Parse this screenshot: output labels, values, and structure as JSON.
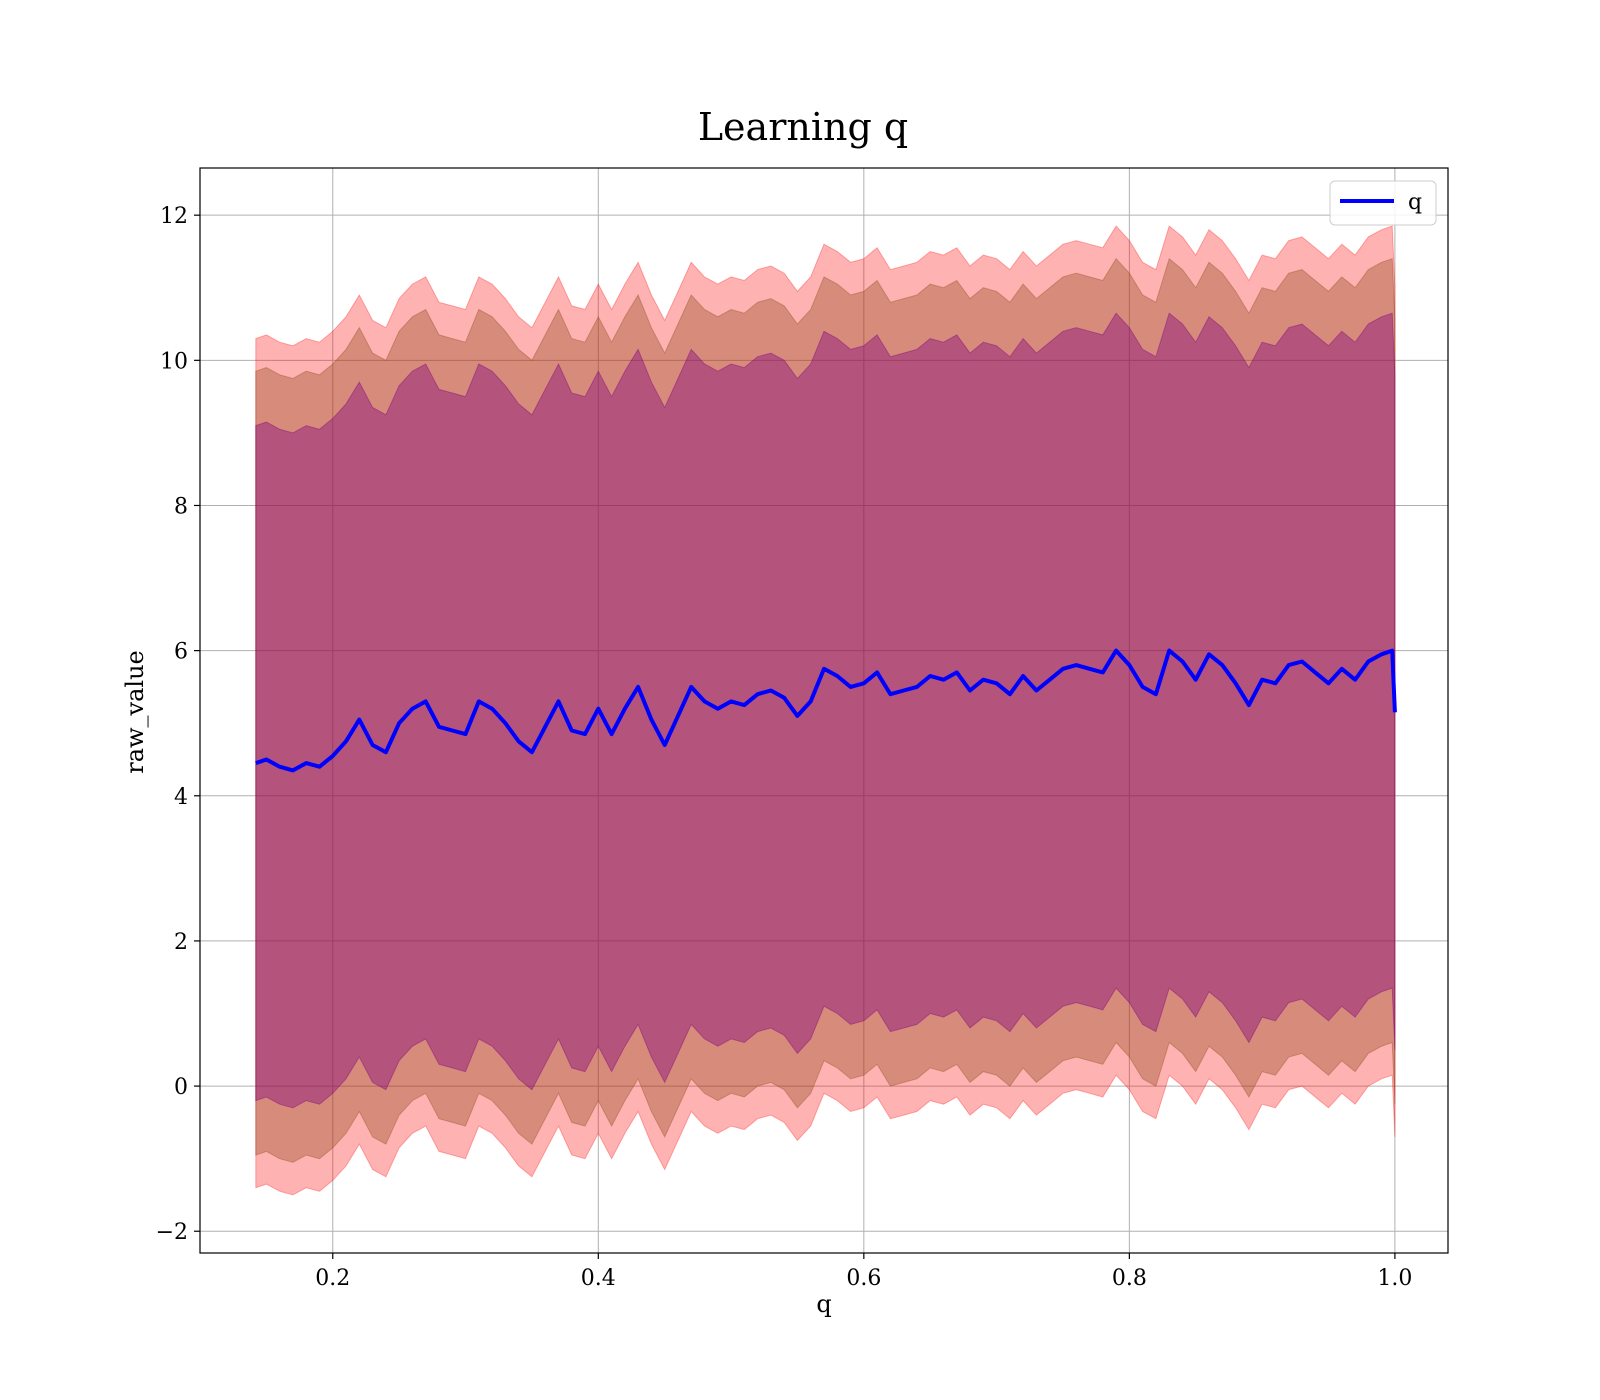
{
  "chart_data": {
    "type": "line",
    "title": "Learning q",
    "xlabel": "q",
    "ylabel": "raw_value",
    "xlim": [
      0.1,
      1.04
    ],
    "ylim": [
      -2.3,
      12.65
    ],
    "x_ticks": [
      0.2,
      0.4,
      0.6,
      0.8,
      1.0
    ],
    "x_tick_labels": [
      "0.2",
      "0.4",
      "0.6",
      "0.8",
      "1.0"
    ],
    "y_ticks": [
      -2,
      0,
      2,
      4,
      6,
      8,
      10,
      12
    ],
    "y_tick_labels": [
      "−2",
      "0",
      "2",
      "4",
      "6",
      "8",
      "10",
      "12"
    ],
    "grid": true,
    "legend": {
      "position": "top-right",
      "entries": [
        "q"
      ]
    },
    "x": [
      0.142,
      0.15,
      0.16,
      0.17,
      0.18,
      0.19,
      0.2,
      0.21,
      0.22,
      0.23,
      0.24,
      0.25,
      0.26,
      0.27,
      0.28,
      0.29,
      0.3,
      0.31,
      0.32,
      0.33,
      0.34,
      0.35,
      0.36,
      0.37,
      0.38,
      0.39,
      0.4,
      0.41,
      0.42,
      0.43,
      0.44,
      0.45,
      0.46,
      0.47,
      0.48,
      0.49,
      0.5,
      0.51,
      0.52,
      0.53,
      0.54,
      0.55,
      0.56,
      0.57,
      0.58,
      0.59,
      0.6,
      0.61,
      0.62,
      0.63,
      0.64,
      0.65,
      0.66,
      0.67,
      0.68,
      0.69,
      0.7,
      0.71,
      0.72,
      0.73,
      0.74,
      0.75,
      0.76,
      0.77,
      0.78,
      0.79,
      0.8,
      0.81,
      0.82,
      0.83,
      0.84,
      0.85,
      0.86,
      0.87,
      0.88,
      0.89,
      0.9,
      0.91,
      0.92,
      0.93,
      0.94,
      0.95,
      0.96,
      0.97,
      0.98,
      0.99,
      0.998,
      1.0
    ],
    "series": [
      {
        "name": "q",
        "color": "#0000ff",
        "values": [
          4.45,
          4.5,
          4.4,
          4.35,
          4.45,
          4.4,
          4.55,
          4.75,
          5.05,
          4.7,
          4.6,
          5.0,
          5.2,
          5.3,
          4.95,
          4.9,
          4.85,
          5.3,
          5.2,
          5.0,
          4.75,
          4.6,
          4.95,
          5.3,
          4.9,
          4.85,
          5.2,
          4.85,
          5.2,
          5.5,
          5.05,
          4.7,
          5.1,
          5.5,
          5.3,
          5.2,
          5.3,
          5.25,
          5.4,
          5.45,
          5.35,
          5.1,
          5.3,
          5.75,
          5.65,
          5.5,
          5.55,
          5.7,
          5.4,
          5.45,
          5.5,
          5.65,
          5.6,
          5.7,
          5.45,
          5.6,
          5.55,
          5.4,
          5.65,
          5.45,
          5.6,
          5.75,
          5.8,
          5.75,
          5.7,
          6.0,
          5.8,
          5.5,
          5.4,
          6.0,
          5.85,
          5.6,
          5.95,
          5.8,
          5.55,
          5.25,
          5.6,
          5.55,
          5.8,
          5.85,
          5.7,
          5.55,
          5.75,
          5.6,
          5.85,
          5.95,
          6.0,
          5.15
        ]
      }
    ],
    "bands": [
      {
        "color": "#ff0000",
        "opacity": 0.3,
        "lower_offset": -5.85,
        "upper_offset": 5.85
      },
      {
        "color": "#8b4513",
        "opacity": 0.35,
        "lower_offset": -5.4,
        "upper_offset": 5.4
      },
      {
        "color": "#800080",
        "opacity": 0.4,
        "lower_offset": -4.65,
        "upper_offset": 4.65
      }
    ]
  }
}
